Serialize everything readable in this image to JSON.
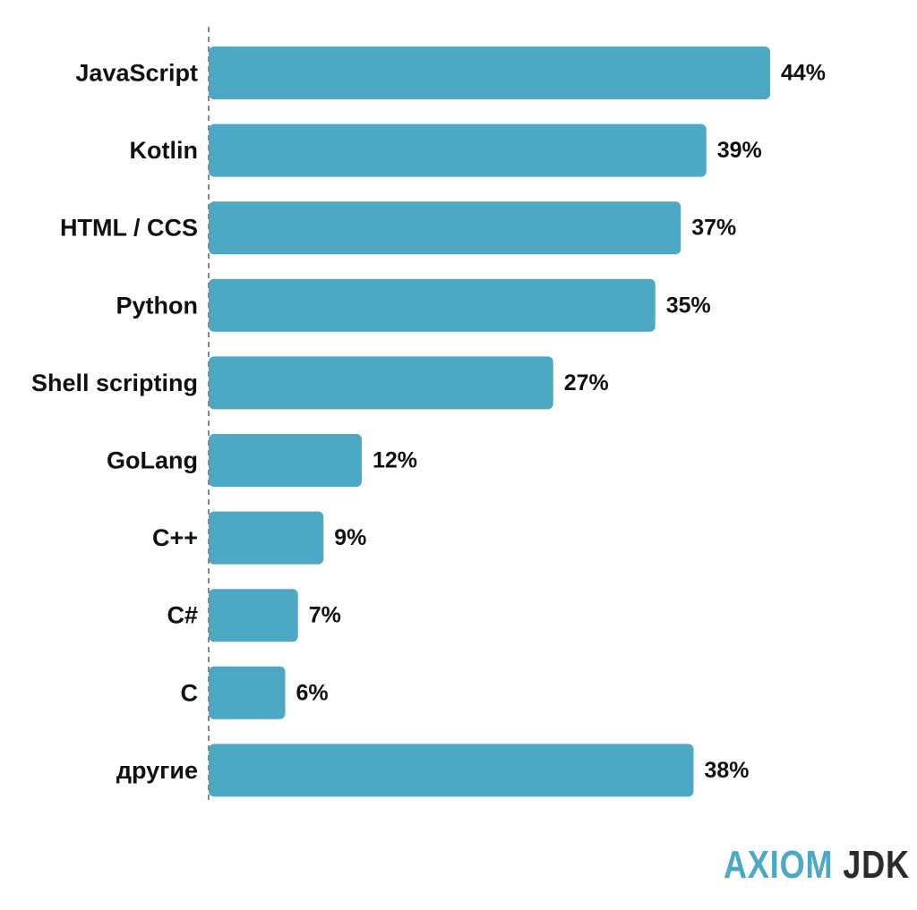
{
  "chart_data": {
    "type": "bar",
    "orientation": "horizontal",
    "categories": [
      "JavaScript",
      "Kotlin",
      "HTML / CCS",
      "Python",
      "Shell scripting",
      "GoLang",
      "C++",
      "C#",
      "C",
      "другие"
    ],
    "values": [
      44,
      39,
      37,
      35,
      27,
      12,
      9,
      7,
      6,
      38
    ],
    "value_labels": [
      "44%",
      "39%",
      "37%",
      "35%",
      "27%",
      "12%",
      "9%",
      "7%",
      "6%",
      "38%"
    ],
    "bar_color": "#4da8c3",
    "axis_color": "#888888",
    "grid": false,
    "legend": "none"
  },
  "logo": {
    "word1": "AXIOM",
    "word2": "JDK",
    "color1": "#4aa9c3",
    "color2": "#2b2b2b"
  }
}
